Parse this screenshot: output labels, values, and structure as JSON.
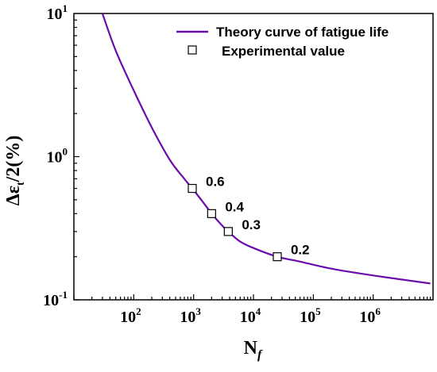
{
  "chart_data": {
    "type": "line",
    "xscale": "log",
    "yscale": "log",
    "xlim": [
      10,
      10000000
    ],
    "ylim": [
      0.1,
      10
    ],
    "xlabel": "N",
    "xlabel_sub": "f",
    "ylabel": "Δε",
    "ylabel_sub": "t",
    "ylabel_suffix": "/2(%)",
    "x_tick_labels": [
      {
        "value": 100,
        "base": "10",
        "exp": "2"
      },
      {
        "value": 1000,
        "base": "10",
        "exp": "3"
      },
      {
        "value": 10000,
        "base": "10",
        "exp": "4"
      },
      {
        "value": 100000,
        "base": "10",
        "exp": "5"
      },
      {
        "value": 1000000,
        "base": "10",
        "exp": "6"
      }
    ],
    "y_tick_labels": [
      {
        "value": 10,
        "base": "10",
        "exp": "1"
      },
      {
        "value": 1,
        "base": "10",
        "exp": "0"
      },
      {
        "value": 0.1,
        "base": "10",
        "exp": "-1"
      }
    ],
    "legend": {
      "placement": "top-right",
      "entries": [
        {
          "label": "Theory curve of fatigue life",
          "marker": "line",
          "color": "#6a0dad"
        },
        {
          "label": "Experimental value",
          "marker": "open-square",
          "color": "#000000"
        }
      ]
    },
    "series": [
      {
        "name": "Theory curve of fatigue life",
        "style": "line",
        "color": "#6a0dad",
        "x": [
          30,
          50,
          100,
          200,
          400,
          700,
          950,
          1500,
          2000,
          3000,
          3800,
          6000,
          10000,
          25000,
          60000,
          200000,
          1000000,
          9000000
        ],
        "y": [
          10,
          5.5,
          2.9,
          1.6,
          0.95,
          0.7,
          0.6,
          0.47,
          0.4,
          0.33,
          0.3,
          0.255,
          0.23,
          0.2,
          0.185,
          0.165,
          0.148,
          0.13
        ]
      },
      {
        "name": "Experimental value",
        "style": "scatter",
        "marker": "open-square",
        "color": "#000000",
        "x": [
          950,
          2000,
          3800,
          25000
        ],
        "y": [
          0.6,
          0.4,
          0.3,
          0.2
        ]
      }
    ],
    "annotations": [
      {
        "text": "0.6",
        "x": 950,
        "y": 0.6
      },
      {
        "text": "0.4",
        "x": 2000,
        "y": 0.4
      },
      {
        "text": "0.3",
        "x": 3800,
        "y": 0.3
      },
      {
        "text": "0.2",
        "x": 25000,
        "y": 0.2
      }
    ]
  }
}
